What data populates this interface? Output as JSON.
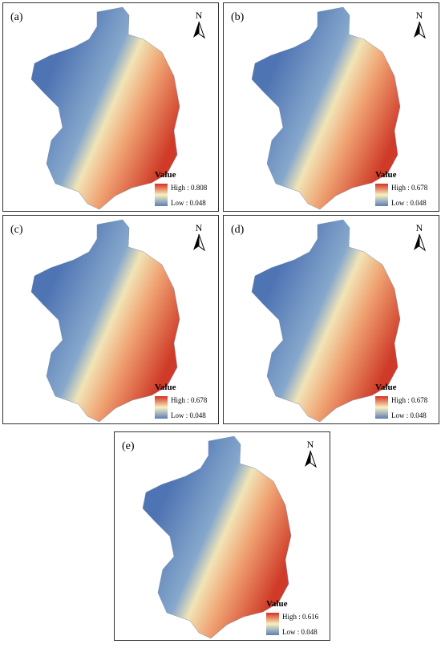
{
  "north_label": "N",
  "panels": [
    {
      "label": "(a)",
      "legend_title": "Value",
      "high": "High : 0.808",
      "low": "Low : 0.048"
    },
    {
      "label": "(b)",
      "legend_title": "Value",
      "high": "High : 0.678",
      "low": "Low : 0.048"
    },
    {
      "label": "(c)",
      "legend_title": "Value",
      "high": "High : 0.678",
      "low": "Low : 0.048"
    },
    {
      "label": "(d)",
      "legend_title": "Value",
      "high": "High : 0.678",
      "low": "Low : 0.048"
    },
    {
      "label": "(e)",
      "legend_title": "Value",
      "high": "High : 0.616",
      "low": "Low : 0.048"
    }
  ]
}
